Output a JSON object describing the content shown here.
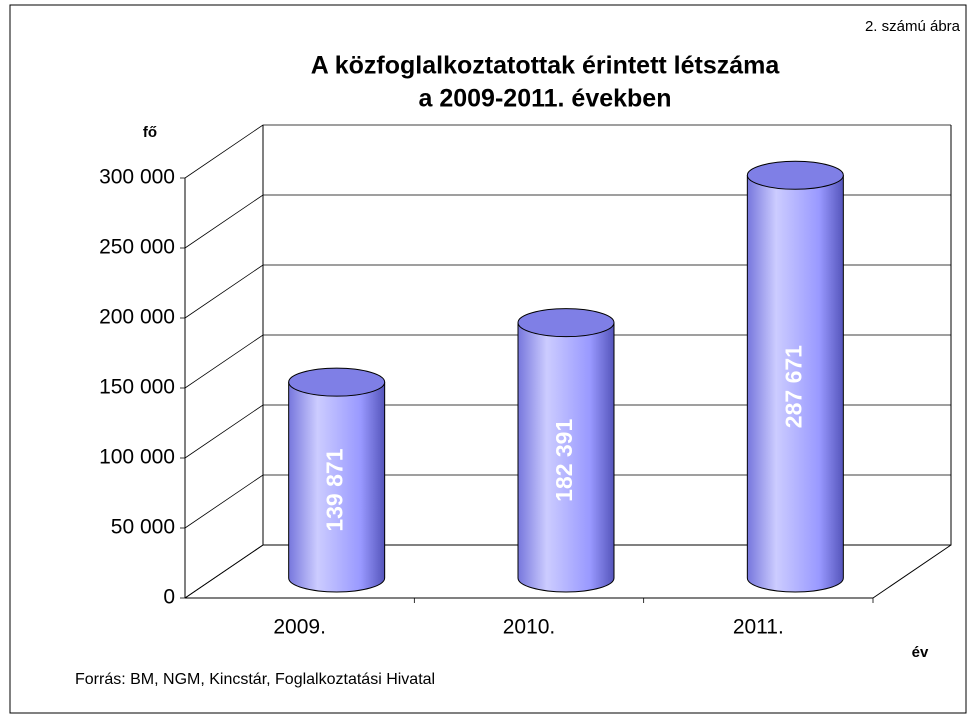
{
  "chart_data": {
    "type": "cylinder",
    "title": [
      "A közfoglalkoztatottak érintett létszáma",
      "a 2009-2011. években"
    ],
    "annotation": "2. számú ábra",
    "y_label": "fő",
    "x_label": "év",
    "source": "Forrás: BM, NGM, Kincstár, Foglalkoztatási Hivatal",
    "categories": [
      "2009.",
      "2010.",
      "2011."
    ],
    "values": [
      139871,
      182391,
      287671
    ],
    "value_labels": [
      "139 871",
      "182 391",
      "287 671"
    ],
    "color": "#9999ff",
    "ylim": [
      0,
      300000
    ],
    "yticks": [
      0,
      {
        "value": 50000,
        "label": "50 000"
      },
      {
        "value": 100000,
        "label": "100 000"
      },
      {
        "value": 150000,
        "label": "150 000"
      },
      {
        "value": 200000,
        "label": "200 000"
      },
      {
        "value": 250000,
        "label": "250 000"
      },
      {
        "value": 300000,
        "label": "300 000"
      }
    ],
    "grid": true
  }
}
